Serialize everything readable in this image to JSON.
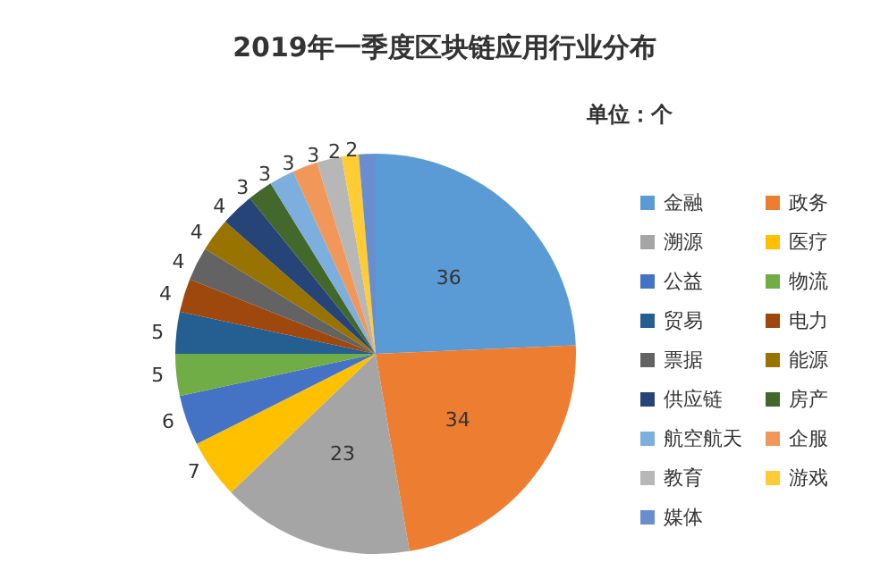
{
  "chart_data": {
    "type": "pie",
    "title": "2019年一季度区块链应用行业分布",
    "annotations": [
      "单位：个"
    ],
    "categories": [
      "金融",
      "政务",
      "溯源",
      "医疗",
      "公益",
      "物流",
      "贸易",
      "电力",
      "票据",
      "能源",
      "供应链",
      "房产",
      "航空航天",
      "企服",
      "教育",
      "游戏",
      "媒体"
    ],
    "values": [
      36,
      34,
      23,
      7,
      6,
      5,
      5,
      4,
      4,
      4,
      4,
      3,
      3,
      3,
      3,
      2,
      2
    ],
    "colors": [
      "#5b9bd5",
      "#ed7d31",
      "#a5a5a5",
      "#ffc000",
      "#4472c4",
      "#70ad47",
      "#255e91",
      "#9e480e",
      "#636363",
      "#997300",
      "#264478",
      "#43682b",
      "#7cafdd",
      "#f1975a",
      "#b7b7b7",
      "#ffcd33",
      "#698ed0"
    ],
    "data_labels": true,
    "legend": "right"
  }
}
